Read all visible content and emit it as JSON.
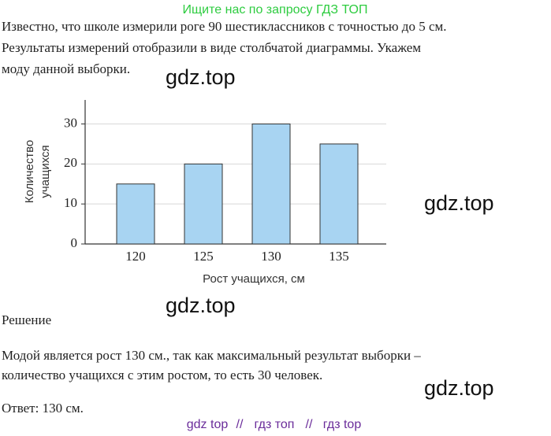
{
  "header": {
    "banner": "Ищите нас по запросу ГДЗ ТОП"
  },
  "problem": {
    "lines": [
      "Известно, что школе измерили роге 90 шестиклассников с точностью до 5 см.",
      "Результаты измерений отобразили в виде столбчатой диаграммы. Укажем",
      "моду данной выборки."
    ]
  },
  "chart_data": {
    "type": "bar",
    "xlabel": "Рост учащихся, см",
    "ylabel": [
      "Количество",
      "учащихся"
    ],
    "categories": [
      "120",
      "125",
      "130",
      "135"
    ],
    "values": [
      15,
      20,
      30,
      25
    ],
    "color": "#a8d4f2",
    "ylim": [
      0,
      36
    ],
    "yticks": [
      0,
      10,
      20,
      30
    ],
    "grid": true
  },
  "solution": {
    "heading": "Решение",
    "lines": [
      "Модой является рост 130 см., так как максимальный результат выборки –",
      "количество учащихся с этим ростом, то есть 30 человек."
    ],
    "answer": "Ответ: 130 см."
  },
  "watermarks": [
    "gdz.top",
    "gdz.top",
    "gdz.top",
    "gdz.top"
  ],
  "footer": {
    "links": [
      "gdz top",
      "гдз топ",
      "гдз top"
    ]
  }
}
